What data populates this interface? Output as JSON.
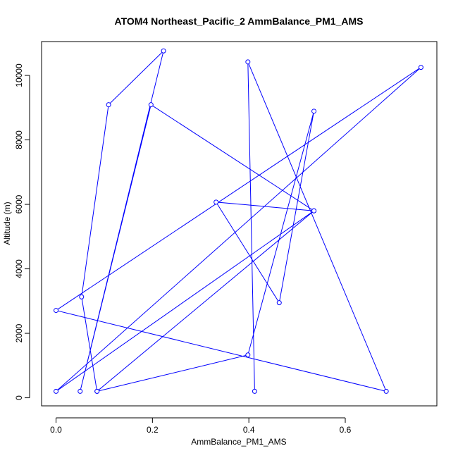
{
  "chart_data": {
    "type": "line",
    "title": "ATOM4 Northeast_Pacific_2 AmmBalance_PM1_AMS",
    "xlabel": "AmmBalance_PM1_AMS",
    "ylabel": "Altitude (m)",
    "xlim": [
      -0.03,
      0.79
    ],
    "ylim": [
      -250,
      11050
    ],
    "xticks": [
      0.0,
      0.2,
      0.4,
      0.6
    ],
    "xtick_labels": [
      "0.0",
      "0.2",
      "0.4",
      "0.6"
    ],
    "yticks": [
      0,
      2000,
      4000,
      6000,
      8000,
      10000
    ],
    "ytick_labels": [
      "0",
      "2000",
      "4000",
      "6000",
      "8000",
      "10000"
    ],
    "grid": false,
    "series": [
      {
        "color": "#0000ff",
        "marker": "open-circle",
        "points": [
          [
            0.412,
            200
          ],
          [
            0.398,
            10420
          ],
          [
            0.685,
            200
          ],
          [
            0.0,
            2710
          ],
          [
            0.757,
            10250
          ],
          [
            0.0,
            200
          ],
          [
            0.535,
            5800
          ],
          [
            0.085,
            200
          ],
          [
            0.053,
            3130
          ],
          [
            0.109,
            9090
          ],
          [
            0.223,
            10760
          ],
          [
            0.05,
            200
          ],
          [
            0.197,
            9090
          ],
          [
            0.535,
            5800
          ],
          [
            0.535,
            5800
          ],
          [
            0.332,
            6070
          ],
          [
            0.463,
            2950
          ],
          [
            0.535,
            8890
          ],
          [
            0.398,
            1330
          ],
          [
            0.085,
            200
          ]
        ]
      }
    ]
  }
}
